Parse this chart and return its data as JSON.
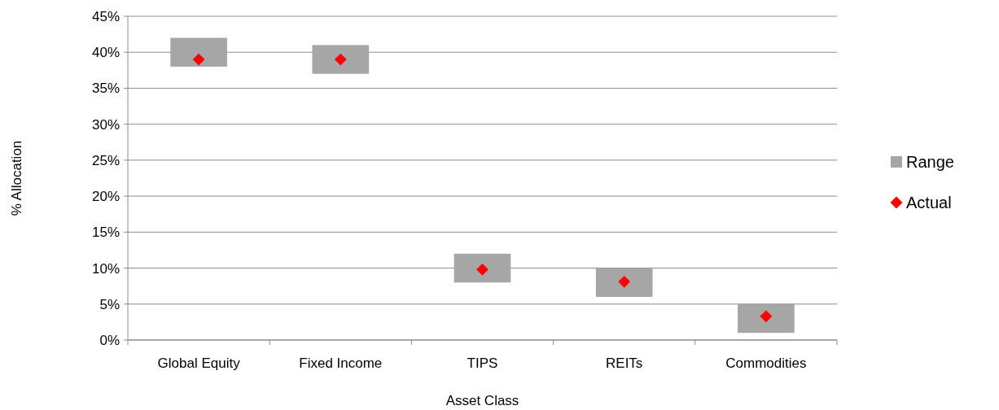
{
  "chart_data": {
    "type": "bar",
    "xlabel": "Asset Class",
    "ylabel": "% Allocation",
    "categories": [
      "Global Equity",
      "Fixed Income",
      "TIPS",
      "REITs",
      "Commodities"
    ],
    "series": [
      {
        "name": "Range",
        "color": "#a6a6a6",
        "base": [
          38,
          37,
          8,
          6,
          1
        ],
        "values": [
          4,
          4,
          4,
          4,
          4
        ]
      },
      {
        "name": "Actual",
        "type": "scatter",
        "color": "#ff0000",
        "marker": "diamond",
        "x": [
          "Global Equity",
          "Fixed Income",
          "TIPS",
          "REITs",
          "Commodities"
        ],
        "values": [
          39,
          39,
          9.8,
          8.1,
          3.3
        ]
      }
    ],
    "ylim": [
      0,
      45
    ],
    "yticks": [
      {
        "value": 0,
        "label": "0%"
      },
      {
        "value": 5,
        "label": "5%"
      },
      {
        "value": 10,
        "label": "10%"
      },
      {
        "value": 15,
        "label": "15%"
      },
      {
        "value": 20,
        "label": "20%"
      },
      {
        "value": 25,
        "label": "25%"
      },
      {
        "value": 30,
        "label": "30%"
      },
      {
        "value": 35,
        "label": "35%"
      },
      {
        "value": 40,
        "label": "40%"
      },
      {
        "value": 45,
        "label": "45%"
      }
    ],
    "grid": "y",
    "legend": "right"
  }
}
